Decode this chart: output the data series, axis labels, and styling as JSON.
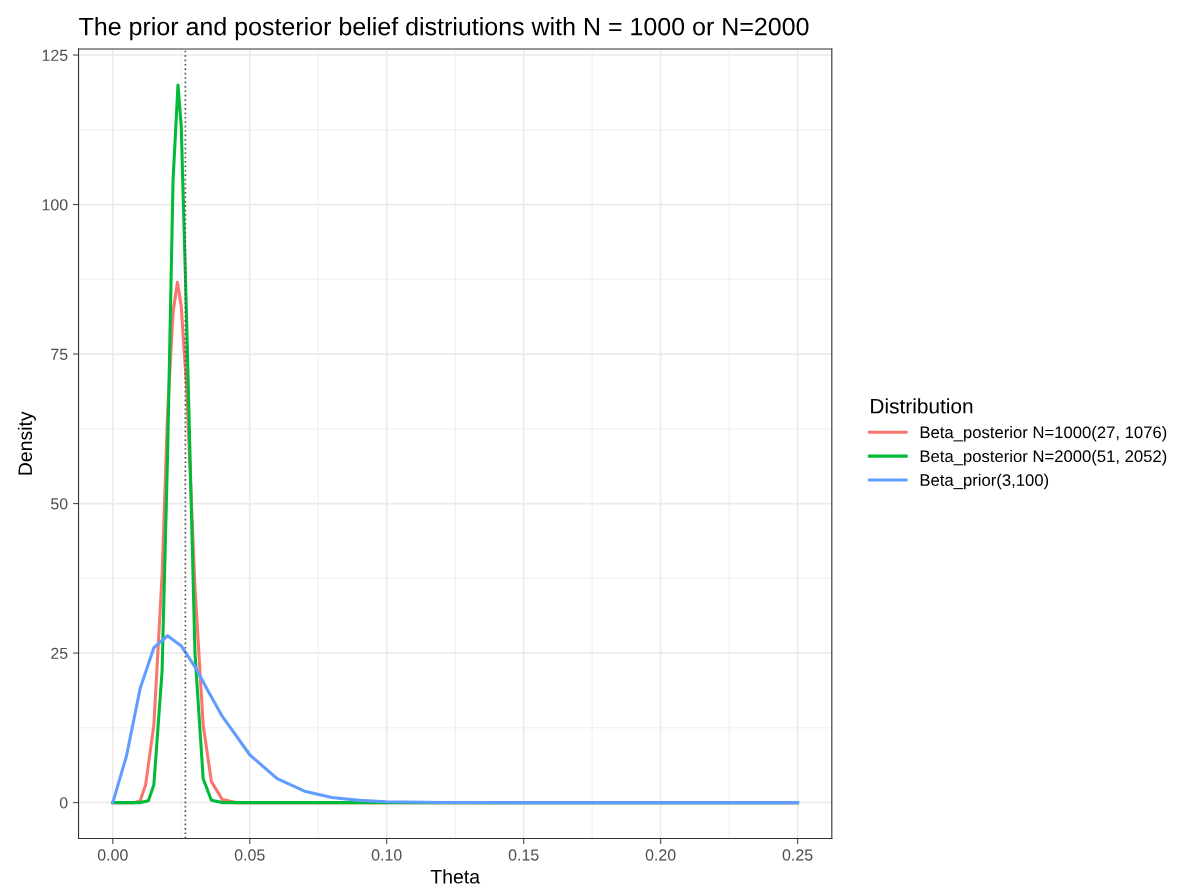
{
  "chart_data": {
    "type": "line",
    "title": "The prior and posterior belief distriutions with N = 1000 or N=2000",
    "xlabel": "Theta",
    "ylabel": "Density",
    "legend_title": "Distribution",
    "legend": "right",
    "grid": true,
    "marker": "none",
    "line_style": "solid",
    "xlim": [
      -0.0125,
      0.2625
    ],
    "ylim": [
      -6,
      126
    ],
    "xticks": [
      {
        "value": 0,
        "label": "0.00"
      },
      {
        "value": 0.05,
        "label": "0.05"
      },
      {
        "value": 0.1,
        "label": "0.10"
      },
      {
        "value": 0.15,
        "label": "0.15"
      },
      {
        "value": 0.2,
        "label": "0.20"
      },
      {
        "value": 0.25,
        "label": "0.25"
      }
    ],
    "yticks": [
      0,
      25,
      50,
      75,
      100,
      125
    ],
    "ref_lines": [
      {
        "axis": "x",
        "value": 0.0265,
        "label": null,
        "color": "#555555",
        "line_style": "dotted"
      }
    ],
    "series": [
      {
        "name": "Beta_posterior N=1000(27, 1076)",
        "color": "#f8766d",
        "x": [
          0,
          0.008,
          0.01,
          0.012,
          0.015,
          0.018,
          0.02,
          0.022,
          0.0236,
          0.025,
          0.027,
          0.03,
          0.033,
          0.036,
          0.04,
          0.045,
          0.05,
          0.25
        ],
        "values": [
          0,
          0,
          0.3,
          3,
          13,
          38,
          65,
          82,
          87,
          83,
          69,
          36,
          13,
          3.5,
          0.5,
          0,
          0,
          0
        ]
      },
      {
        "name": "Beta_posterior N=2000(51, 2052)",
        "color": "#00ba38",
        "x": [
          0,
          0.01,
          0.013,
          0.015,
          0.018,
          0.02,
          0.022,
          0.0238,
          0.025,
          0.027,
          0.03,
          0.033,
          0.036,
          0.04,
          0.25
        ],
        "values": [
          0,
          0,
          0.3,
          3,
          22,
          58,
          104,
          120,
          113,
          80,
          25,
          4,
          0.4,
          0,
          0
        ]
      },
      {
        "name": "Beta_prior(3,100)",
        "color": "#619cff",
        "x": [
          0,
          0.005,
          0.01,
          0.015,
          0.02,
          0.025,
          0.03,
          0.035,
          0.04,
          0.05,
          0.06,
          0.07,
          0.08,
          0.09,
          0.1,
          0.12,
          0.15,
          0.2,
          0.25
        ],
        "values": [
          0,
          7.8,
          19.1,
          25.9,
          27.9,
          26.2,
          22.7,
          18.5,
          14.4,
          8,
          4,
          1.9,
          0.85,
          0.37,
          0.15,
          0,
          0,
          0,
          0
        ]
      }
    ]
  }
}
